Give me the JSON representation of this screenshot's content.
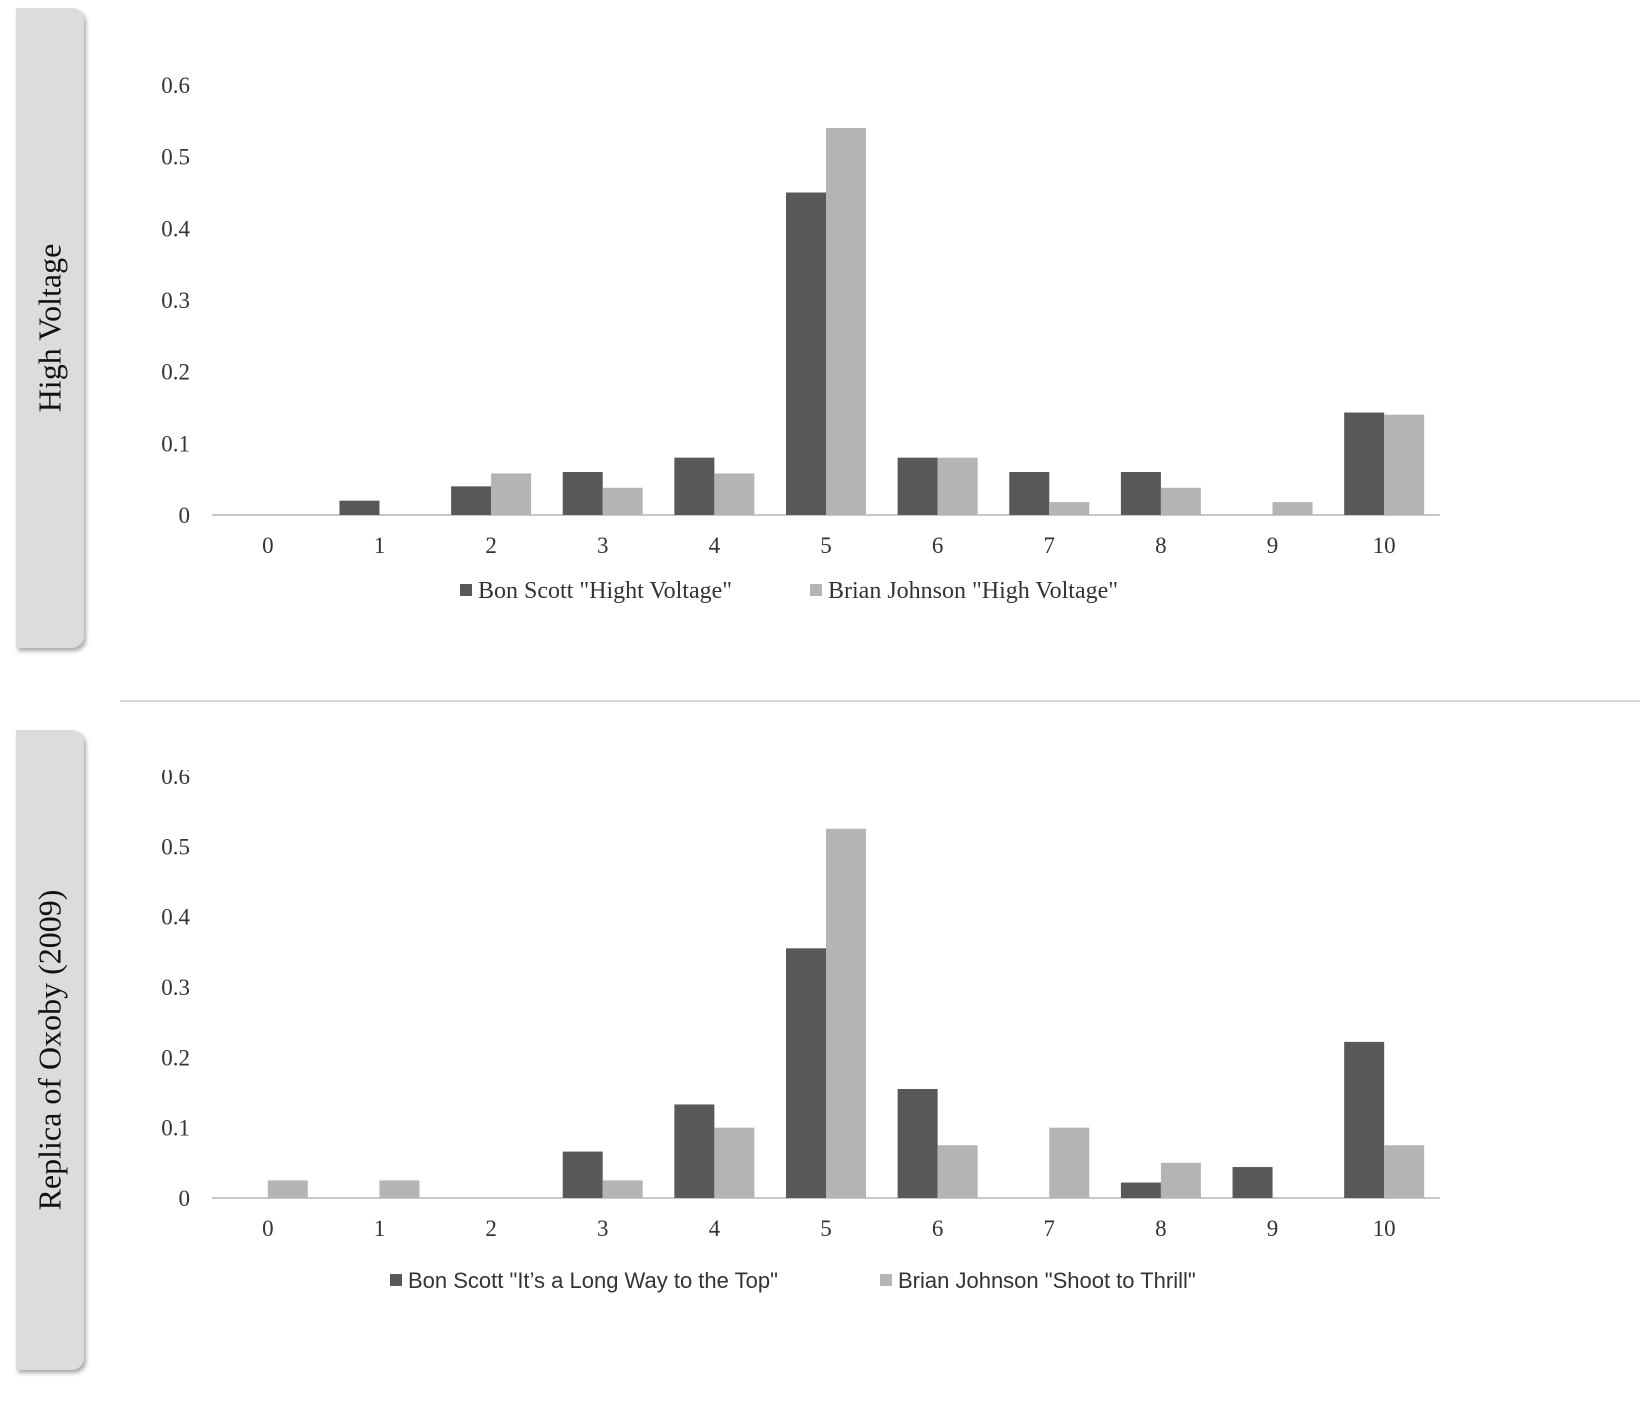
{
  "panels": [
    {
      "label": "High Voltage"
    },
    {
      "label": "Replica of Oxoby (2009)"
    }
  ],
  "colors": {
    "series1": "#585858",
    "series2": "#b4b4b4",
    "axis": "#c8c8c8"
  },
  "chart_data": [
    {
      "type": "bar",
      "title": "",
      "xlabel": "",
      "ylabel": "",
      "categories": [
        "0",
        "1",
        "2",
        "3",
        "4",
        "5",
        "6",
        "7",
        "8",
        "9",
        "10"
      ],
      "y_ticks": [
        "0",
        "0.1",
        "0.2",
        "0.3",
        "0.4",
        "0.5",
        "0.6"
      ],
      "ylim": [
        0,
        0.6
      ],
      "grid": false,
      "legend_position": "bottom",
      "series": [
        {
          "name": "Bon Scott \"Hight Voltage\"",
          "values": [
            0,
            0.02,
            0.04,
            0.06,
            0.08,
            0.45,
            0.08,
            0.06,
            0.06,
            0,
            0.143
          ]
        },
        {
          "name": "Brian Johnson \"High Voltage\"",
          "values": [
            0,
            0,
            0.058,
            0.038,
            0.058,
            0.54,
            0.08,
            0.018,
            0.038,
            0.018,
            0.14
          ]
        }
      ]
    },
    {
      "type": "bar",
      "title": "",
      "xlabel": "",
      "ylabel": "",
      "categories": [
        "0",
        "1",
        "2",
        "3",
        "4",
        "5",
        "6",
        "7",
        "8",
        "9",
        "10"
      ],
      "y_ticks": [
        "0",
        "0.1",
        "0.2",
        "0.3",
        "0.4",
        "0.5",
        "0.6"
      ],
      "ylim": [
        0,
        0.6
      ],
      "grid": false,
      "legend_position": "bottom",
      "series": [
        {
          "name": "Bon Scott \"It’s a Long Way to the Top\"",
          "values": [
            0,
            0,
            0,
            0.066,
            0.133,
            0.355,
            0.155,
            0,
            0.022,
            0.044,
            0.222
          ]
        },
        {
          "name": "Brian Johnson \"Shoot to Thrill\"",
          "values": [
            0.025,
            0.025,
            0,
            0.025,
            0.1,
            0.525,
            0.075,
            0.1,
            0.05,
            0,
            0.075
          ]
        }
      ]
    }
  ]
}
